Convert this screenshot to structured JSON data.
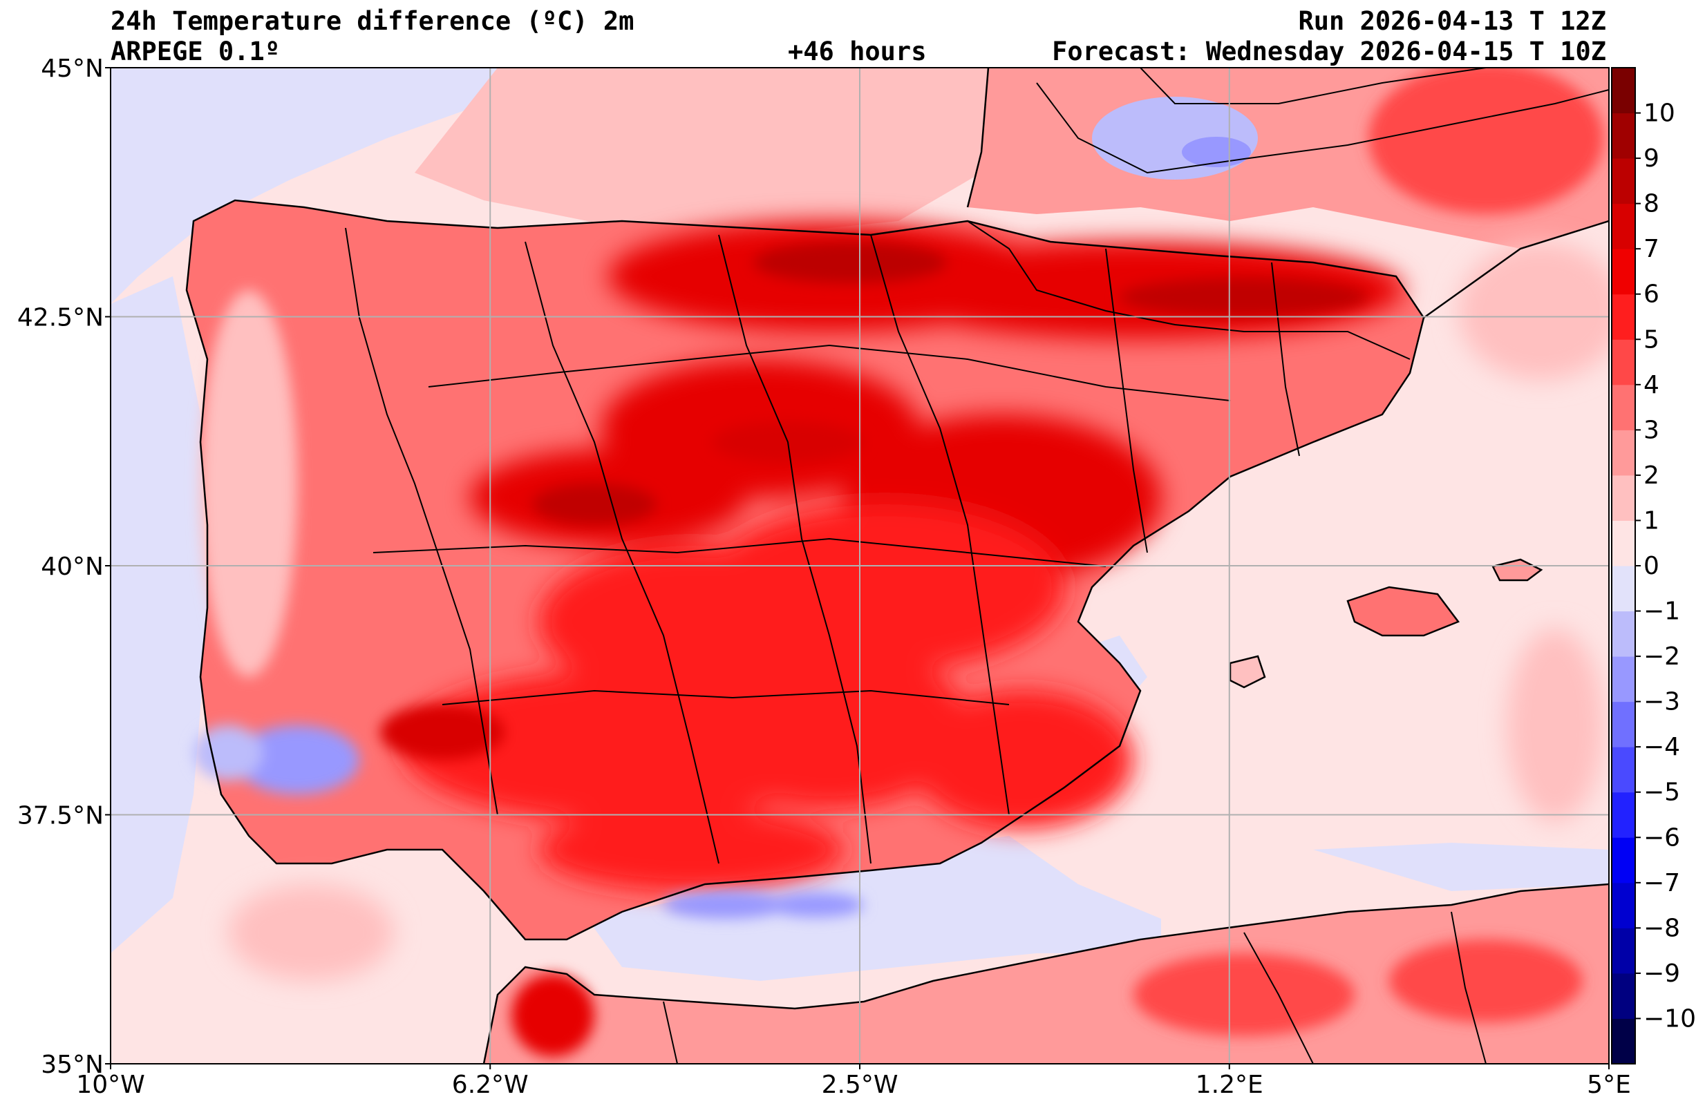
{
  "header": {
    "title": "24h Temperature difference (ºC) 2m",
    "model": "ARPEGE 0.1º",
    "lead": "+46 hours",
    "run": "Run 2026-04-13 T 12Z",
    "valid": "Forecast: Wednesday 2026-04-15 T 10Z"
  },
  "map": {
    "lon_range": [
      -10,
      5
    ],
    "lat_range": [
      35,
      45
    ],
    "lon_ticks": [
      {
        "value": -10,
        "label": "10°W"
      },
      {
        "value": -6.2,
        "label": "6.2°W"
      },
      {
        "value": -2.5,
        "label": "2.5°W"
      },
      {
        "value": 1.2,
        "label": "1.2°E"
      },
      {
        "value": 5,
        "label": "5°E"
      }
    ],
    "lat_ticks": [
      {
        "value": 45,
        "label": "45°N"
      },
      {
        "value": 42.5,
        "label": "42.5°N"
      },
      {
        "value": 40,
        "label": "40°N"
      },
      {
        "value": 37.5,
        "label": "37.5°N"
      },
      {
        "value": 35,
        "label": "35°N"
      }
    ],
    "grid": true,
    "colors": {
      "ocean": "#fee4e4",
      "land_base": "#ff5a5a",
      "hot": "#e60000",
      "very_hot": "#c00000",
      "cool": "#e0e0fb",
      "cold": "#8c8cf5"
    }
  },
  "colorbar": {
    "levels": [
      -11,
      -10,
      -9,
      -8,
      -7,
      -6,
      -5,
      -4,
      -3,
      -2,
      -1,
      0,
      1,
      2,
      3,
      4,
      5,
      6,
      7,
      8,
      9,
      10,
      11
    ],
    "labels": [
      "−10",
      "−9",
      "−8",
      "−7",
      "−6",
      "−5",
      "−4",
      "−3",
      "−2",
      "−1",
      "0",
      "1",
      "2",
      "3",
      "4",
      "5",
      "6",
      "7",
      "8",
      "9",
      "10"
    ],
    "label_values": [
      -10,
      -9,
      -8,
      -7,
      -6,
      -5,
      -4,
      -3,
      -2,
      -1,
      0,
      1,
      2,
      3,
      4,
      5,
      6,
      7,
      8,
      9,
      10
    ],
    "colors": [
      "#000048",
      "#000080",
      "#0000a8",
      "#0000d0",
      "#0000f5",
      "#2222ff",
      "#4a4aff",
      "#7070ff",
      "#9898ff",
      "#bcbcfb",
      "#e2e2fa",
      "#fee4e4",
      "#ffc0c0",
      "#ff9a9a",
      "#ff7272",
      "#ff4848",
      "#ff1e1e",
      "#f00000",
      "#d80000",
      "#bc0000",
      "#a00000",
      "#7a0000"
    ]
  }
}
